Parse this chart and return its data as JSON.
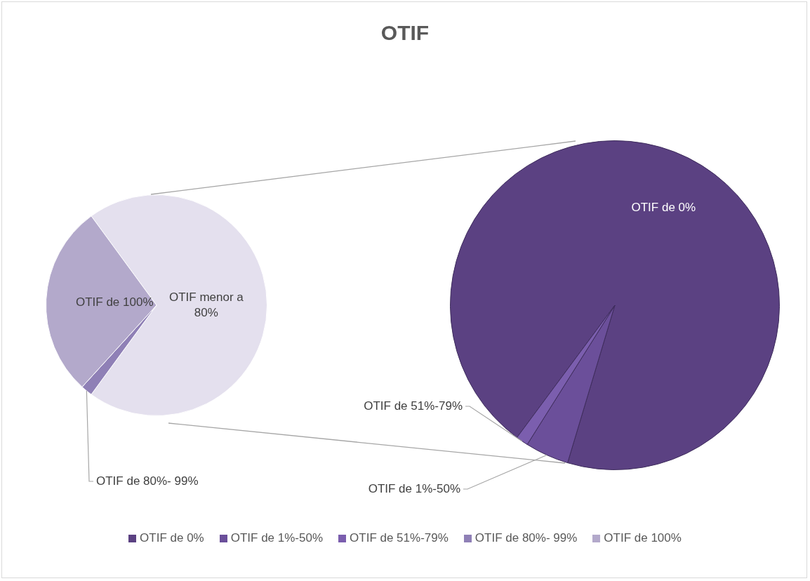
{
  "chart_data": [
    {
      "type": "pie",
      "title": "OTIF",
      "categories": [
        "OTIF menor a 80%",
        "OTIF de 80%- 99%",
        "OTIF de 100%"
      ],
      "values": [
        70.1,
        1.7,
        28.2
      ],
      "colors": [
        "#e4e0ee",
        "#8f80b6",
        "#b3a9cb"
      ],
      "legend": "bottom"
    },
    {
      "type": "pie",
      "categories": [
        "OTIF de 0%",
        "OTIF de 1%-50%",
        "OTIF de 51%-79%"
      ],
      "values": [
        94.5,
        4.3,
        1.2
      ],
      "colors": [
        "#5b4182",
        "#6b4f9a",
        "#7b5eae"
      ],
      "legend": "bottom"
    }
  ]
}
